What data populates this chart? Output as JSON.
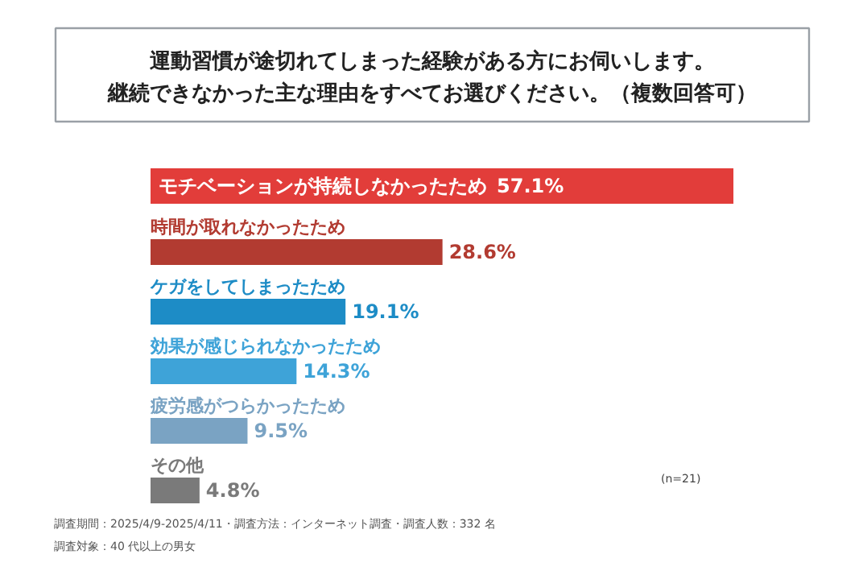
{
  "chart_data": {
    "type": "bar",
    "orientation": "horizontal",
    "title": "運動習慣が途切れてしまった経験がある方にお伺いします。継続できなかった主な理由をすべてお選びください。（複数回答可）",
    "categories": [
      "モチベーションが持続しなかったため",
      "時間が取れなかったため",
      "ケガをしてしまったため",
      "効果が感じられなかったため",
      "疲労感がつらかったため",
      "その他"
    ],
    "values": [
      57.1,
      28.6,
      19.1,
      14.3,
      9.5,
      4.8
    ],
    "colors": [
      "#e23d3a",
      "#b23b31",
      "#1d8cc6",
      "#3ea3d8",
      "#7aa3c3",
      "#7a7a7a"
    ],
    "value_labels": [
      "57.1%",
      "28.6%",
      "19.1%",
      "14.3%",
      "9.5%",
      "4.8%"
    ],
    "annotations": [
      "(n=21)",
      "調査期間：2025/4/9-2025/4/11・調査方法：インターネット調査・調査人数：332 名",
      "調査対象：40 代以上の男女"
    ]
  }
}
